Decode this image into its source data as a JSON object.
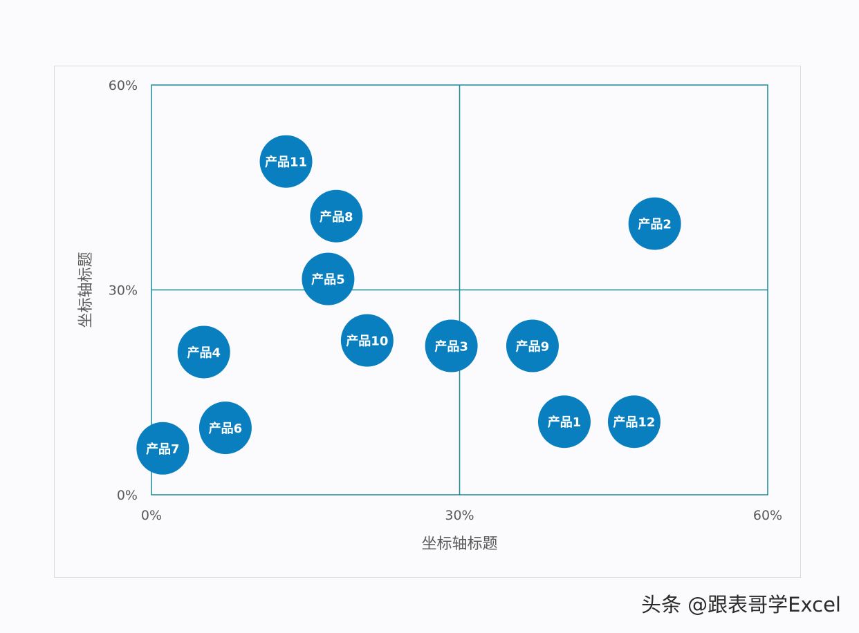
{
  "colors": {
    "bubble": "#0a7fbf",
    "quadrant_line": "#1a8a9a",
    "tick_text": "#595959"
  },
  "watermark": "头条 @跟表哥学Excel",
  "chart_data": {
    "type": "scatter",
    "style": "bubble",
    "title": "",
    "xlabel": "坐标轴标题",
    "ylabel": "坐标轴标题",
    "xlim": [
      0,
      0.6
    ],
    "ylim": [
      0,
      0.6
    ],
    "x_ticks": [
      0,
      0.3,
      0.6
    ],
    "y_ticks": [
      0,
      0.3,
      0.6
    ],
    "x_tick_labels": [
      "0%",
      "30%",
      "60%"
    ],
    "y_tick_labels": [
      "0%",
      "30%",
      "60%"
    ],
    "quadrant_lines": {
      "x": 0.3,
      "y": 0.3
    },
    "grid": false,
    "legend": "none",
    "points": [
      {
        "label": "产品1",
        "x": 0.402,
        "y": 0.107
      },
      {
        "label": "产品2",
        "x": 0.49,
        "y": 0.397
      },
      {
        "label": "产品3",
        "x": 0.292,
        "y": 0.218
      },
      {
        "label": "产品4",
        "x": 0.051,
        "y": 0.209
      },
      {
        "label": "产品5",
        "x": 0.172,
        "y": 0.316
      },
      {
        "label": "产品6",
        "x": 0.072,
        "y": 0.098
      },
      {
        "label": "产品7",
        "x": 0.011,
        "y": 0.068
      },
      {
        "label": "产品8",
        "x": 0.18,
        "y": 0.408
      },
      {
        "label": "产品9",
        "x": 0.371,
        "y": 0.218
      },
      {
        "label": "产品10",
        "x": 0.21,
        "y": 0.226
      },
      {
        "label": "产品11",
        "x": 0.131,
        "y": 0.488
      },
      {
        "label": "产品12",
        "x": 0.47,
        "y": 0.107
      }
    ]
  }
}
